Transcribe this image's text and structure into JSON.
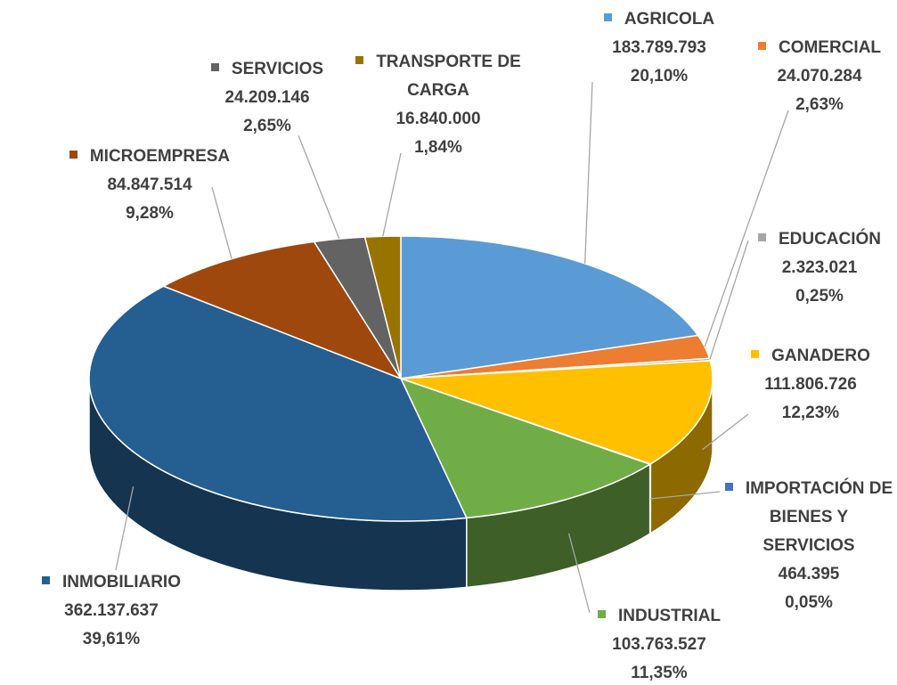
{
  "chart_data": {
    "type": "pie3d",
    "categories": [
      "AGRICOLA",
      "COMERCIAL",
      "EDUCACIÓN",
      "GANADERO",
      "IMPORTACIÓN DE BIENES Y SERVICIOS",
      "INDUSTRIAL",
      "INMOBILIARIO",
      "MICROEMPRESA",
      "SERVICIOS",
      "TRANSPORTE DE CARGA"
    ],
    "values": [
      183789793,
      24070284,
      2323021,
      111806726,
      464395,
      103763527,
      362137637,
      84847514,
      24209146,
      16840000
    ],
    "value_labels": [
      "183.789.793",
      "24.070.284",
      "2.323.021",
      "111.806.726",
      "464.395",
      "103.763.527",
      "362.137.637",
      "84.847.514",
      "24.209.146",
      "16.840.000"
    ],
    "percentages": [
      20.1,
      2.63,
      0.25,
      12.23,
      0.05,
      11.35,
      39.61,
      9.28,
      2.65,
      1.84
    ],
    "percentage_labels": [
      "20,10%",
      "2,63%",
      "0,25%",
      "12,23%",
      "0,05%",
      "11,35%",
      "39,61%",
      "9,28%",
      "2,65%",
      "1,84%"
    ],
    "colors": [
      "#5b9bd5",
      "#ed7d31",
      "#a5a5a5",
      "#ffc000",
      "#4472c4",
      "#70ad47",
      "#255e91",
      "#9e480e",
      "#636363",
      "#997300"
    ]
  }
}
